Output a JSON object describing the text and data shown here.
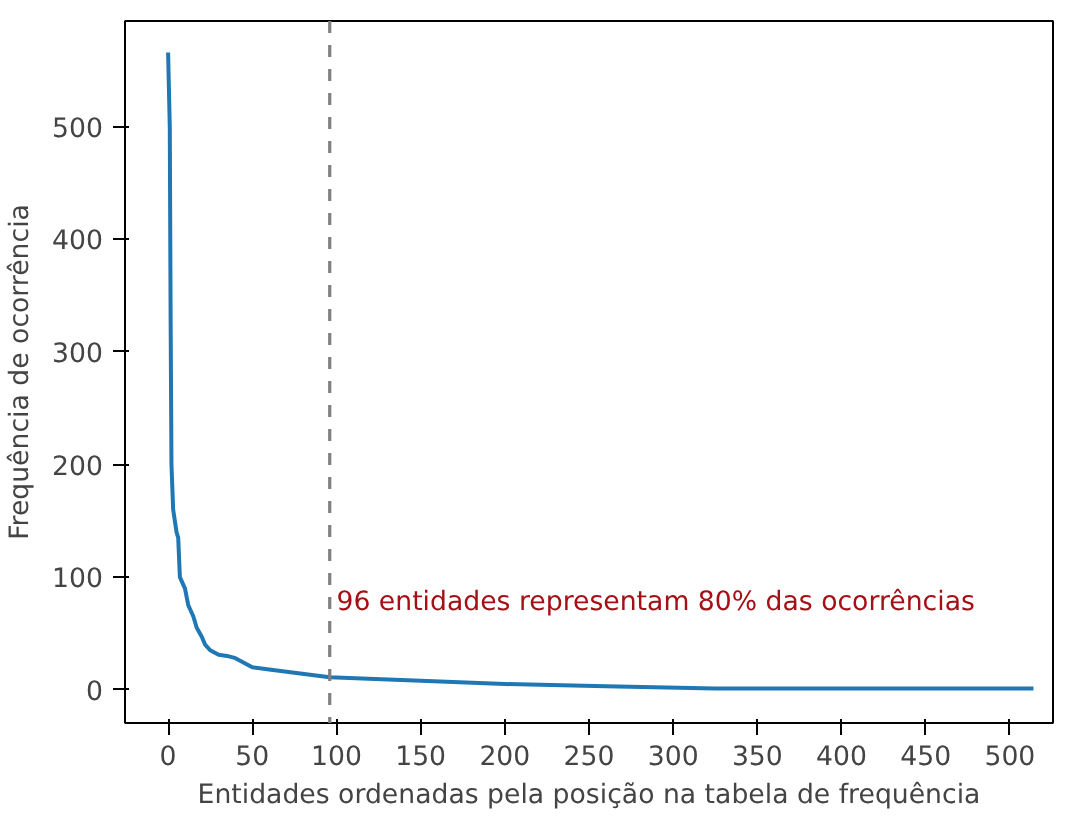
{
  "chart_data": {
    "type": "line",
    "xlabel": "Entidades ordenadas pela posição na tabela de frequência",
    "ylabel": "Frequência de ocorrência",
    "x": [
      0,
      1,
      1.5,
      2,
      3,
      5,
      6,
      7,
      10,
      12,
      15,
      17,
      20,
      22,
      25,
      30,
      35,
      40,
      45,
      50,
      60,
      75,
      96,
      150,
      200,
      260,
      325,
      514
    ],
    "series": [
      {
        "color": "#1f77b4",
        "values": [
          566,
          500,
          330,
          200,
          160,
          140,
          135,
          100,
          90,
          75,
          65,
          55,
          47,
          40,
          35,
          31,
          30,
          28,
          24,
          20,
          18,
          15,
          11,
          8,
          5,
          3,
          1,
          1
        ]
      }
    ],
    "xlim": [
      -25.6,
      525.6
    ],
    "ylim": [
      -29.6,
      594
    ],
    "xticks": [
      0,
      50,
      100,
      150,
      200,
      250,
      300,
      350,
      400,
      450,
      500
    ],
    "yticks": [
      0,
      100,
      200,
      300,
      400,
      500
    ],
    "grid": false,
    "ref_lines": [
      {
        "axis": "x",
        "value": 96,
        "color": "#808080",
        "line_style": "dashed"
      }
    ],
    "annotations": [
      {
        "text": "96 entidades representam 80% das ocorrências",
        "x": 100,
        "y": 64
      }
    ]
  }
}
